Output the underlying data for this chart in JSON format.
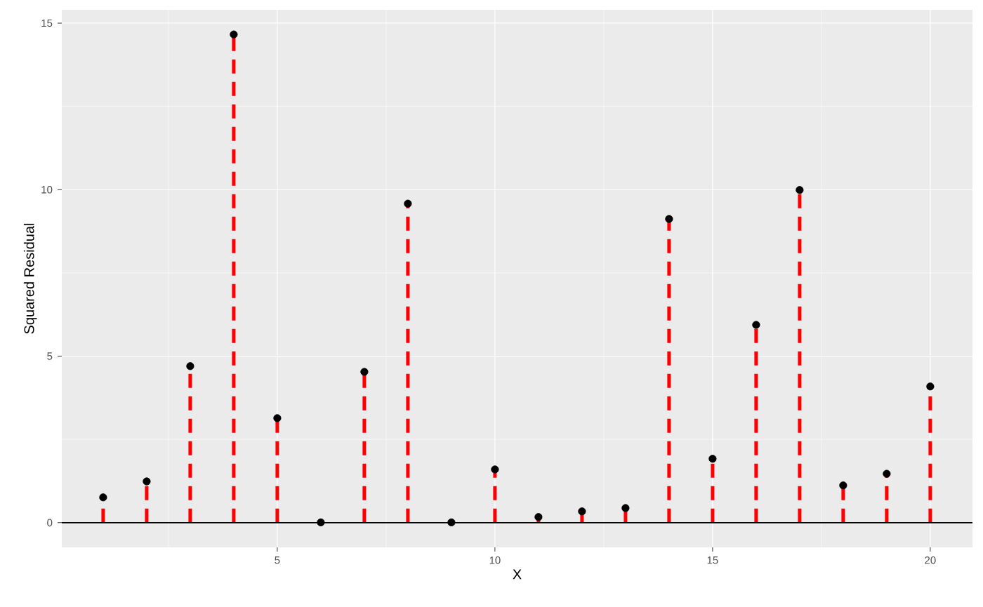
{
  "chart_data": {
    "type": "lollipop",
    "xlabel": "X",
    "ylabel": "Squared Residual",
    "x": [
      1,
      2,
      3,
      4,
      5,
      6,
      7,
      8,
      9,
      10,
      11,
      12,
      13,
      14,
      15,
      16,
      17,
      18,
      19,
      20
    ],
    "series": [
      {
        "color": "#000000",
        "line_style": "dashed",
        "marker": "circle",
        "values": [
          0.76,
          1.24,
          4.7,
          14.66,
          3.14,
          0.01,
          4.53,
          9.58,
          0.01,
          1.6,
          0.17,
          0.34,
          0.44,
          9.12,
          1.92,
          5.94,
          9.99,
          1.12,
          1.47,
          4.09
        ]
      }
    ],
    "xlim": [
      0.05,
      20.97
    ],
    "ylim": [
      -0.74,
      15.4
    ],
    "xticks": [
      5,
      10,
      15,
      20
    ],
    "yticks": [
      0,
      5,
      10,
      15
    ],
    "grid": true,
    "ref_lines": [
      {
        "axis": "y",
        "value": 0,
        "color": "#000000"
      }
    ]
  }
}
